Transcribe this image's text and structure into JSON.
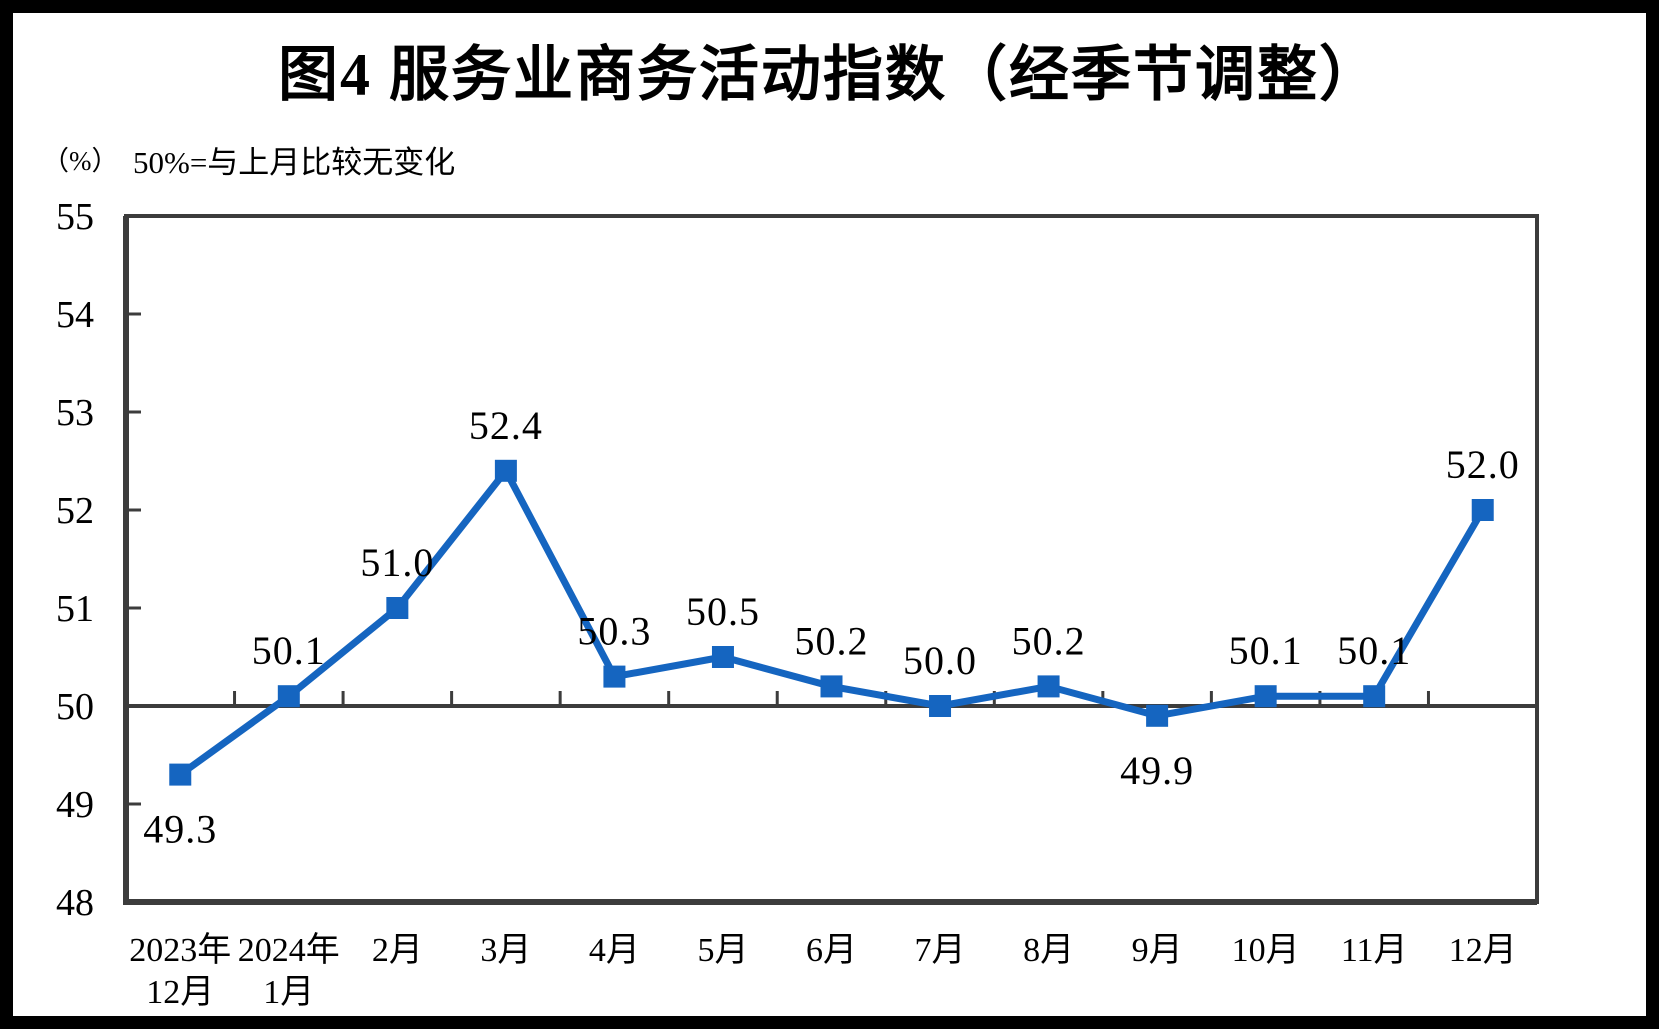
{
  "figure": {
    "title": "图4 服务业商务活动指数（经季节调整）",
    "unit_label": "（%）",
    "subtitle": "50%=与上月比较无变化"
  },
  "colors": {
    "line": "#1565C0",
    "axis": "#3C3C3C",
    "text": "#000000",
    "frame": "#000000",
    "background": "#FFFFFF"
  },
  "chart_data": {
    "type": "line",
    "title": "图4 服务业商务活动指数（经季节调整）",
    "subtitle": "50%=与上月比较无变化",
    "unit": "（%）",
    "categories": [
      "2023年\n12月",
      "2024年\n1月",
      "2月",
      "3月",
      "4月",
      "5月",
      "6月",
      "7月",
      "8月",
      "9月",
      "10月",
      "11月",
      "12月"
    ],
    "values": [
      49.3,
      50.1,
      51.0,
      52.4,
      50.3,
      50.5,
      50.2,
      50.0,
      50.2,
      49.9,
      50.1,
      50.1,
      52.0
    ],
    "data_label_positions": [
      "below",
      "above",
      "above",
      "above",
      "above",
      "above",
      "above",
      "above",
      "above",
      "below",
      "above",
      "above",
      "above"
    ],
    "ylim": [
      48,
      55
    ],
    "ytick_step": 1,
    "reference_line_y": 50,
    "grid": false,
    "legend": "none",
    "marker": "square",
    "line_color": "#1565C0"
  }
}
